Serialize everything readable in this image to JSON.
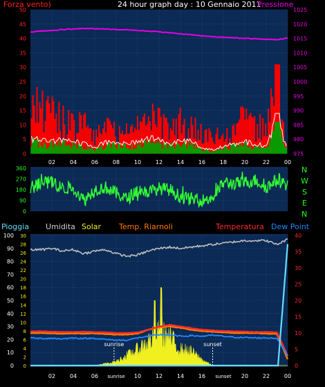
{
  "header": {
    "left_label": "Forza vento)",
    "title": "24 hour graph day : 10 Gennaio 2011",
    "right_label": "Pressione"
  },
  "compass": [
    "N",
    "W",
    "S",
    "E",
    "N"
  ],
  "legend": {
    "pioggia": "Pioggia",
    "umidita": "Umidita",
    "solar": "Solar",
    "riarnoli": "Temp. Riarnoli",
    "temperatura": "Temperatura",
    "dewpoint": "Dew Point"
  },
  "colors": {
    "plot_bg": "#0b2a55",
    "grid": "#2f5d8c",
    "gust": "#ff0000",
    "avg_wind": "#00a000",
    "wind_outline": "#ffffff",
    "pressure": "#e600e6",
    "direction": "#33ff33",
    "humidity": "#c0c0c0",
    "solar": "#f0f020",
    "temperature": "#ff2a2a",
    "riarnoli": "#ff7a00",
    "dewpoint": "#2288ff",
    "rain": "#66ddff",
    "sun_markers": "#ffffff"
  },
  "chart_data": [
    {
      "type": "bar",
      "name": "wind",
      "x_hours": [
        1,
        23.9
      ],
      "x_ticks": [
        "02",
        "04",
        "06",
        "08",
        "10",
        "12",
        "14",
        "16",
        "18",
        "20",
        "22",
        "00"
      ],
      "y_left_ticks": [
        "0",
        "5",
        "10",
        "15",
        "20",
        "25",
        "30",
        "35",
        "40",
        "45",
        "50"
      ],
      "y_left_lim": [
        0,
        50
      ],
      "y_right_ticks": [
        "975",
        "980",
        "985",
        "990",
        "995",
        "1000",
        "1005",
        "1010",
        "1015",
        "1020",
        "1025"
      ],
      "y_right_lim": [
        975,
        1025
      ],
      "grid": true,
      "pressure_hourly": [
        1017.2,
        1017.6,
        1017.8,
        1018.1,
        1018.3,
        1018.5,
        1018.4,
        1018.3,
        1018.1,
        1018.0,
        1017.8,
        1017.6,
        1017.3,
        1017.0,
        1016.6,
        1016.3,
        1015.9,
        1015.6,
        1015.4,
        1015.2,
        1015.0,
        1014.9,
        1014.7,
        1014.6,
        1015.2
      ],
      "gust_hourly": [
        24,
        20,
        16,
        14,
        12,
        12,
        8,
        13,
        10,
        9,
        12,
        15,
        14,
        10,
        13,
        11,
        9,
        7,
        8,
        10,
        15,
        12,
        10,
        31,
        1
      ],
      "avg_hourly": [
        4,
        3.5,
        3,
        3.5,
        3,
        2.5,
        1.5,
        3,
        3,
        2.5,
        3,
        4,
        3.5,
        2.5,
        3.5,
        3,
        1.5,
        1,
        2,
        2.5,
        3,
        2.5,
        2,
        9,
        0.5
      ]
    },
    {
      "type": "line",
      "name": "wind-direction",
      "y_ticks": [
        "0",
        "90",
        "180",
        "270",
        "360"
      ],
      "y_lim": [
        0,
        360
      ],
      "direction_hourly": [
        200,
        230,
        250,
        190,
        200,
        90,
        180,
        200,
        150,
        100,
        180,
        160,
        190,
        180,
        120,
        100,
        90,
        110,
        240,
        230,
        240,
        260,
        200,
        260,
        220
      ]
    },
    {
      "type": "line",
      "name": "temperature-humidity",
      "x_ticks": [
        "02",
        "04",
        "06",
        "sunrise",
        "10",
        "12",
        "14",
        "16",
        "sunset",
        "20",
        "22",
        "00"
      ],
      "y_left_ticks": [
        "0",
        "10",
        "20",
        "30",
        "40",
        "50",
        "60",
        "70",
        "80",
        "90",
        "100"
      ],
      "y_left_lim": [
        0,
        100
      ],
      "y_inner_ticks": [
        "0",
        "2",
        "4",
        "6",
        "8",
        "10",
        "12",
        "14",
        "16",
        "18",
        "20",
        "22",
        "24",
        "26",
        "28",
        "30"
      ],
      "y_right_ticks": [
        "0",
        "5",
        "10",
        "15",
        "20",
        "25",
        "30",
        "35",
        "40"
      ],
      "y_right_lim": [
        0,
        40
      ],
      "markers": [
        {
          "label": "sunrise",
          "hour": 7.8
        },
        {
          "label": "sunset",
          "hour": 17
        }
      ],
      "humidity_hourly": [
        89,
        89,
        90,
        88,
        89,
        86,
        88,
        89,
        86,
        84,
        85,
        88,
        90,
        91,
        90,
        91,
        92,
        93,
        94,
        95,
        96,
        96,
        96,
        93,
        97
      ],
      "temperature_hourly": [
        10.5,
        10.5,
        10.4,
        10.3,
        10.3,
        10.4,
        10.3,
        10.2,
        10.0,
        10.0,
        10.2,
        11.0,
        12.0,
        12.5,
        12.0,
        11.5,
        11.0,
        10.8,
        10.6,
        10.5,
        10.4,
        10.3,
        10.3,
        10.2,
        3.0
      ],
      "riarnoli_hourly": [
        10.0,
        10.0,
        9.9,
        9.8,
        9.9,
        9.8,
        9.9,
        9.7,
        9.5,
        9.5,
        9.8,
        11.0,
        11.8,
        12.0,
        11.6,
        11.0,
        10.6,
        10.4,
        10.2,
        10.0,
        10.0,
        10.0,
        9.8,
        9.7,
        2.0
      ],
      "dewpoint_hourly": [
        8.5,
        8.3,
        8.4,
        8.2,
        8.5,
        8.3,
        8.4,
        8.0,
        7.8,
        7.8,
        8.5,
        9.0,
        9.5,
        9.4,
        9.0,
        9.2,
        9.0,
        9.3,
        9.0,
        8.7,
        8.6,
        8.5,
        8.5,
        8.4,
        3.0
      ],
      "solar_hourly": [
        0,
        0,
        0,
        0,
        0,
        0,
        0,
        0.5,
        1,
        2.5,
        4,
        6,
        8,
        7,
        4,
        3.5,
        1.5,
        0,
        0,
        0,
        0,
        0,
        0,
        0,
        0
      ],
      "rain_hourly": [
        0,
        0,
        0,
        0,
        0,
        0,
        0,
        0,
        0,
        0,
        0,
        0,
        0,
        0,
        0,
        0,
        0,
        0,
        0,
        0,
        0,
        0,
        0,
        0,
        28
      ]
    }
  ]
}
